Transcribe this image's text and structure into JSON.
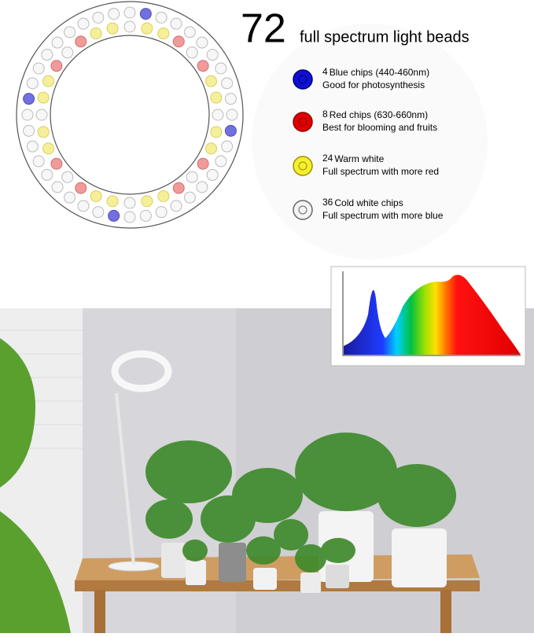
{
  "headline": {
    "count": "72",
    "text": "full spectrum light beads"
  },
  "legend": [
    {
      "count": "4",
      "title": "Blue chips (440-460nm)",
      "desc": "Good for photosynthesis"
    },
    {
      "count": "8",
      "title": "Red chips  (630-660nm)",
      "desc": "Best for blooming and fruits"
    },
    {
      "count": "24",
      "title": "Warm white",
      "desc": "Full spectrum with more red"
    },
    {
      "count": "36",
      "title": "Cold white chips",
      "desc": "Full spectrum with more blue"
    }
  ]
}
